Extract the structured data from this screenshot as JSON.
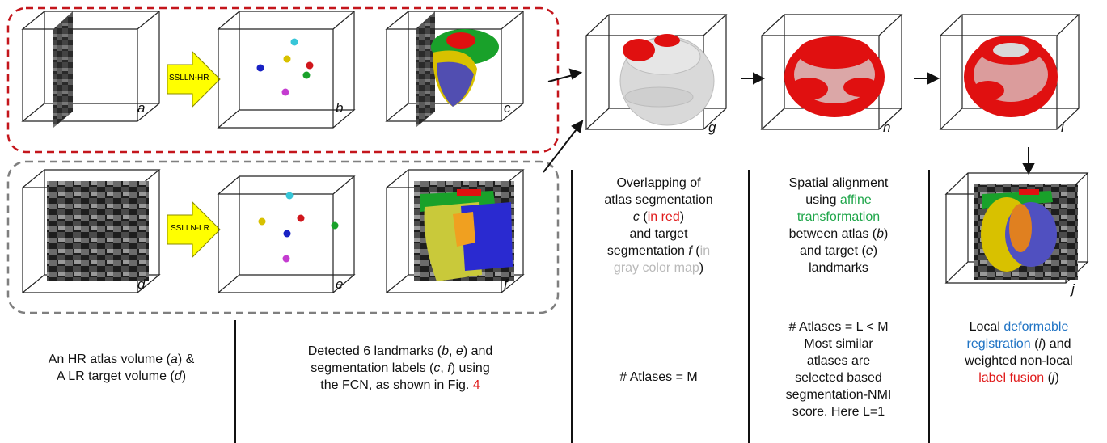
{
  "panels": {
    "a": "a",
    "b": "b",
    "c": "c",
    "d": "d",
    "e": "e",
    "f": "f",
    "g": "g",
    "h": "h",
    "i": "i",
    "j": "j"
  },
  "arrows": {
    "hr": "SSLLN-HR",
    "lr": "SSLLN-LR"
  },
  "captions": {
    "col1": {
      "line1": "An HR atlas volume (",
      "a": "a",
      "line1b": ") &",
      "line2": "A LR target volume (",
      "d": "d",
      "line2b": ")"
    },
    "col2": {
      "l1a": "Detected 6 landmarks (",
      "b": "b",
      "l1b": ", ",
      "e": "e",
      "l1c": ") and",
      "l2a": "segmentation labels (",
      "c": "c",
      "l2b": ", ",
      "f": "f",
      "l2c": ") using",
      "l3a": "the FCN, as shown in Fig. ",
      "fig": "4"
    },
    "col3": {
      "l1": "Overlapping of",
      "l2": "atlas segmentation",
      "l3a": "c",
      "l3b": " (",
      "l3red": "in red",
      "l3c": ")",
      "l4": "and target",
      "l5a": "segmentation ",
      "l5f": "f",
      "l5b": " (",
      "l5gray": "in",
      "l6gray": "gray color map",
      "l6b": ")",
      "atlases": "# Atlases = M"
    },
    "col4": {
      "l1": "Spatial alignment",
      "l2a": "using ",
      "l2green": "affine",
      "l3green": "transformation",
      "l4a": "between atlas (",
      "l4b": "b",
      "l4c": ")",
      "l5a": "and target (",
      "l5b": "e",
      "l5c": ")",
      "l6": "landmarks",
      "n1": "# Atlases = L < M",
      "n2": "Most similar",
      "n3": "atlases are",
      "n4": "selected based",
      "n5": "segmentation-NMI",
      "n6": "score. Here L=1"
    },
    "col5": {
      "l1a": "Local ",
      "l1blue": "deformable",
      "l2blue": "registration",
      "l2b": " (",
      "l2i": "i",
      "l2c": ") and",
      "l3": "weighted non-local",
      "l4red": "label fusion",
      "l4b": " (",
      "l4j": "j",
      "l4c": ")"
    }
  },
  "colors": {
    "red_box": "#c4161c",
    "gray_box": "#7f7f7f",
    "arrow_fill": "#ffff00",
    "landmark_cyan": "#37c6d8",
    "landmark_yellow": "#d8c100",
    "landmark_red": "#d0161c",
    "landmark_green": "#19a12a",
    "landmark_blue": "#1922c4",
    "landmark_magenta": "#c43cd0",
    "seg_red": "#e01010",
    "seg_gray": "#d9d9d9"
  }
}
